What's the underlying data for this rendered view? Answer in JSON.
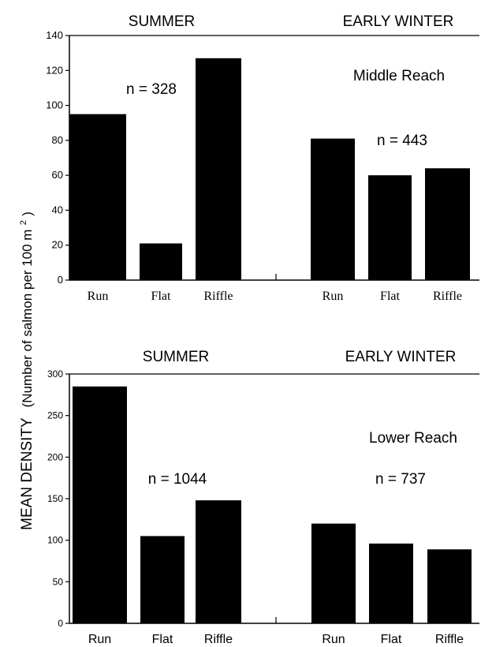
{
  "y_axis_label": {
    "main": "MEAN DENSITY",
    "units_prefix": "(Number of salmon per 100 m",
    "units_sup": "2",
    "units_suffix": " )"
  },
  "chart_data": [
    {
      "type": "bar",
      "panel_label": "Middle Reach",
      "ylim": [
        0,
        140
      ],
      "yticks": [
        "0",
        "20",
        "40",
        "60",
        "80",
        "100",
        "120",
        "140"
      ],
      "groups": [
        {
          "name": "SUMMER",
          "n_label": "n = 328",
          "categories": [
            "Run",
            "Flat",
            "Riffle"
          ],
          "values": [
            95,
            21,
            127
          ]
        },
        {
          "name": "EARLY WINTER",
          "n_label": "n = 443",
          "categories": [
            "Run",
            "Flat",
            "Riffle"
          ],
          "values": [
            81,
            60,
            64
          ]
        }
      ],
      "bar_color": "#000000"
    },
    {
      "type": "bar",
      "panel_label": "Lower Reach",
      "ylim": [
        0,
        300
      ],
      "yticks": [
        "0",
        "50",
        "100",
        "150",
        "200",
        "250",
        "300"
      ],
      "groups": [
        {
          "name": "SUMMER",
          "n_label": "n = 1044",
          "categories": [
            "Run",
            "Flat",
            "Riffle"
          ],
          "values": [
            285,
            105,
            148
          ]
        },
        {
          "name": "EARLY WINTER",
          "n_label": "n = 737",
          "categories": [
            "Run",
            "Flat",
            "Riffle"
          ],
          "values": [
            120,
            96,
            89
          ]
        }
      ],
      "bar_color": "#000000"
    }
  ]
}
